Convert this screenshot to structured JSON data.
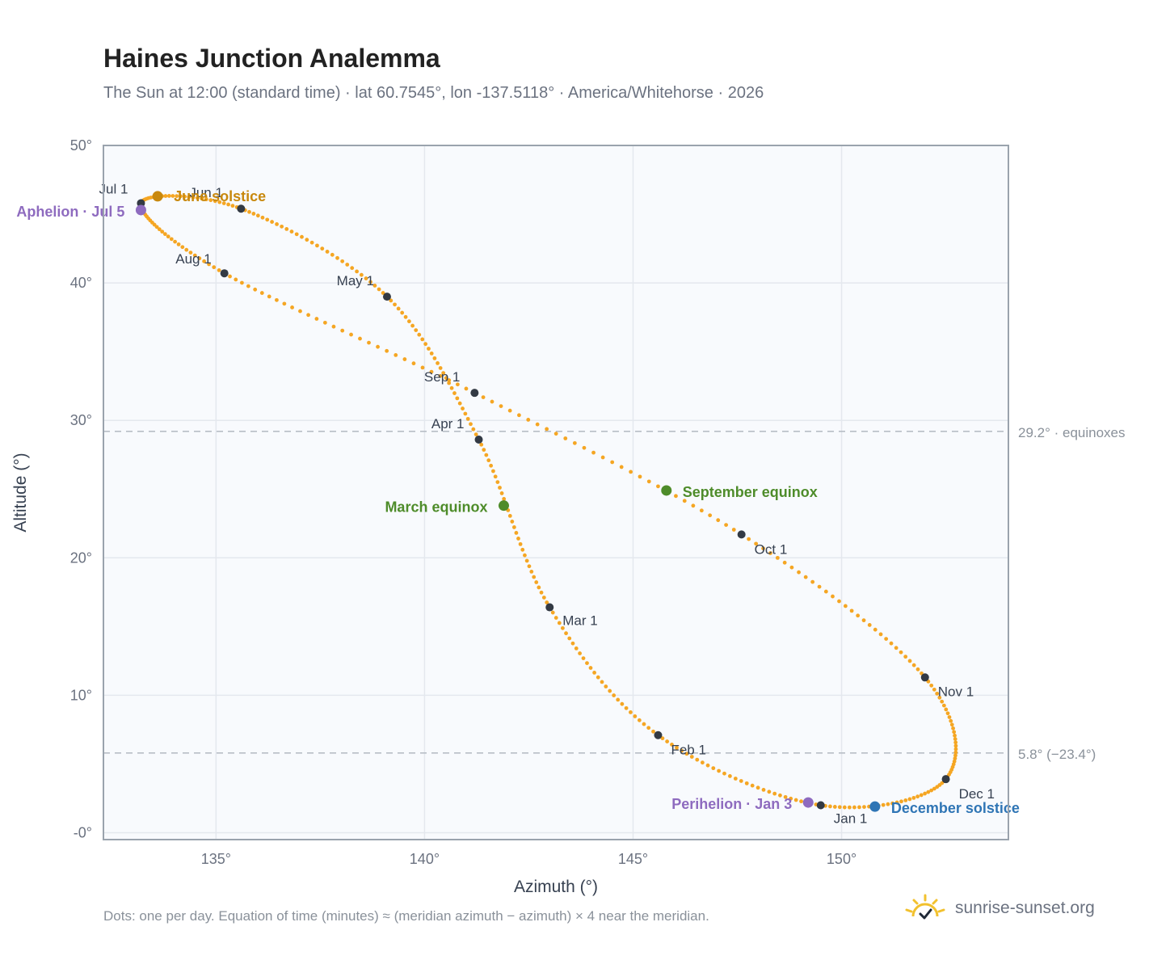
{
  "title": "Haines Junction Analemma",
  "subtitle": "The Sun at 12:00 (standard time) · lat 60.7545°, lon -137.5118° · America/Whitehorse · 2026",
  "footer_note": "Dots: one per day. Equation of time (minutes) ≈ (meridian azimuth − azimuth) × 4 near the meridian.",
  "brand": {
    "name": "sunrise-sunset.org",
    "icon": "sun-logo-icon"
  },
  "colors": {
    "curve": "#f5a623",
    "month_dot": "#333a44",
    "solstice_june": "#c8880d",
    "solstice_december": "#2f75b5",
    "equinox": "#4e8c2a",
    "apsis": "#8e6bbf",
    "plot_background": "#f8fafd",
    "grid": "#e4e8ee",
    "frame": "#9aa3ad",
    "reference_line": "#b8bec6"
  },
  "chart_data": {
    "type": "scatter",
    "title": "Haines Junction Analemma",
    "xlabel": "Azimuth (°)",
    "ylabel": "Altitude (°)",
    "xlim": [
      132.3,
      154.0
    ],
    "ylim": [
      -0.5,
      50
    ],
    "x_ticks": [
      135,
      140,
      145,
      150
    ],
    "x_tick_labels": [
      "135°",
      "140°",
      "145°",
      "150°"
    ],
    "y_ticks": [
      0,
      10,
      20,
      30,
      40,
      50
    ],
    "y_tick_labels": [
      "-0°",
      "10°",
      "20°",
      "30°",
      "40°",
      "50°"
    ],
    "grid": true,
    "reference_lines": [
      {
        "y": 29.2,
        "label": "29.2° · equinoxes"
      },
      {
        "y": 5.8,
        "label": "5.8° (−23.4°)"
      }
    ],
    "month_points": [
      {
        "label": "Jan 1",
        "az": 149.5,
        "alt": 2.0
      },
      {
        "label": "Feb 1",
        "az": 145.6,
        "alt": 7.1
      },
      {
        "label": "Mar 1",
        "az": 143.0,
        "alt": 16.4
      },
      {
        "label": "Apr 1",
        "az": 141.3,
        "alt": 28.6
      },
      {
        "label": "May 1",
        "az": 139.1,
        "alt": 39.0
      },
      {
        "label": "Jun 1",
        "az": 135.6,
        "alt": 45.4
      },
      {
        "label": "Jul 1",
        "az": 133.2,
        "alt": 45.8
      },
      {
        "label": "Aug 1",
        "az": 135.2,
        "alt": 40.7
      },
      {
        "label": "Sep 1",
        "az": 141.2,
        "alt": 32.0
      },
      {
        "label": "Oct 1",
        "az": 147.6,
        "alt": 21.7
      },
      {
        "label": "Nov 1",
        "az": 152.0,
        "alt": 11.3
      },
      {
        "label": "Dec 1",
        "az": 152.5,
        "alt": 3.9
      }
    ],
    "events": [
      {
        "label": "June solstice",
        "az": 133.6,
        "alt": 46.3,
        "color_key": "solstice_june"
      },
      {
        "label": "December solstice",
        "az": 150.8,
        "alt": 1.9,
        "color_key": "solstice_december"
      },
      {
        "label": "March equinox",
        "az": 141.9,
        "alt": 23.8,
        "color_key": "equinox"
      },
      {
        "label": "September equinox",
        "az": 145.8,
        "alt": 24.9,
        "color_key": "equinox"
      },
      {
        "label": "Aphelion · Jul 5",
        "az": 133.2,
        "alt": 45.3,
        "color_key": "apsis"
      },
      {
        "label": "Perihelion · Jan 3",
        "az": 149.2,
        "alt": 2.2,
        "color_key": "apsis"
      }
    ]
  }
}
